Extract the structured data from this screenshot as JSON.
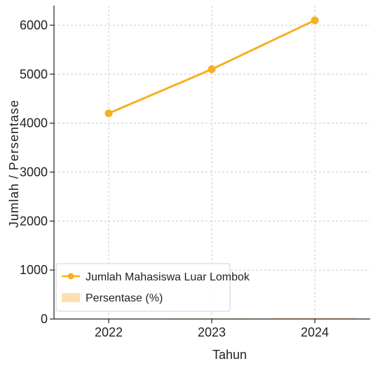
{
  "chart_data": {
    "type": "line",
    "xlabel": "Tahun",
    "ylabel": "Jumlah / Persentase",
    "categories": [
      "2022",
      "2023",
      "2024"
    ],
    "ylim": [
      0,
      6400
    ],
    "yticks": [
      0,
      1000,
      2000,
      3000,
      4000,
      5000,
      6000
    ],
    "grid": true,
    "legend_position": "bottom-left",
    "series": [
      {
        "name": "Jumlah Mahasiswa Luar Lombok",
        "type": "line",
        "color": "#f5b021",
        "values": [
          4200,
          5100,
          6100
        ]
      },
      {
        "name": "Persentase (%)",
        "type": "bar",
        "color": "#fde0b0",
        "values": [
          5,
          15,
          25
        ]
      }
    ]
  }
}
